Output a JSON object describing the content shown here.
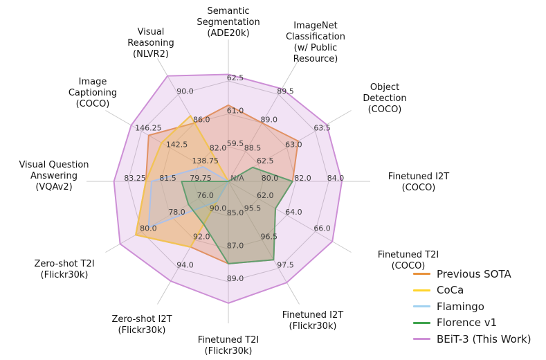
{
  "chart_data": {
    "type": "radar",
    "title": "",
    "center_label": "N/A",
    "grid": true,
    "legend_position": "lower right",
    "background": "#ffffff",
    "grid_color": "#c9c9c9",
    "axes": [
      {
        "label_lines": [
          "Semantic",
          "Segmentation",
          "(ADE20k)"
        ],
        "tick_labels": [
          "59.5",
          "61.0",
          "62.5"
        ]
      },
      {
        "label_lines": [
          "ImageNet",
          "Classification",
          "(w/ Public",
          "Resource)"
        ],
        "tick_labels": [
          "88.5",
          "89.0",
          "89.5"
        ]
      },
      {
        "label_lines": [
          "Object",
          "Detection",
          "(COCO)"
        ],
        "tick_labels": [
          "62.5",
          "63.0",
          "63.5"
        ]
      },
      {
        "label_lines": [
          "Finetuned I2T",
          "(COCO)"
        ],
        "tick_labels": [
          "80.0",
          "82.0",
          "84.0"
        ]
      },
      {
        "label_lines": [
          "Finetuned T2I",
          "(COCO)"
        ],
        "tick_labels": [
          "62.0",
          "64.0",
          "66.0"
        ]
      },
      {
        "label_lines": [
          "Finetuned I2T",
          "(Flickr30k)"
        ],
        "tick_labels": [
          "95.5",
          "96.5",
          "97.5"
        ]
      },
      {
        "label_lines": [
          "Finetuned T2I",
          "(Flickr30k)"
        ],
        "tick_labels": [
          "85.0",
          "87.0",
          "89.0"
        ]
      },
      {
        "label_lines": [
          "Zero-shot I2T",
          "(Flickr30k)"
        ],
        "tick_labels": [
          "90.0",
          "92.0",
          "94.0"
        ]
      },
      {
        "label_lines": [
          "Zero-shot T2I",
          "(Flickr30k)"
        ],
        "tick_labels": [
          "76.0",
          "78.0",
          "80.0"
        ]
      },
      {
        "label_lines": [
          "Visual Question",
          "Answering",
          "(VQAv2)"
        ],
        "tick_labels": [
          "79.75",
          "81.5",
          "83.25"
        ]
      },
      {
        "label_lines": [
          "Image",
          "Captioning",
          "(COCO)"
        ],
        "tick_labels": [
          "138.75",
          "142.5",
          "146.25"
        ]
      },
      {
        "label_lines": [
          "Visual",
          "Reasoning",
          "(NLVR2)"
        ],
        "tick_labels": [
          "82.0",
          "86.0",
          "90.0"
        ]
      }
    ],
    "series": [
      {
        "name": "Previous SOTA",
        "color": "#e8923c",
        "values": [
          61.4,
          89.0,
          63.2,
          81.8,
          63.2,
          97.2,
          87.9,
          92.5,
          80.4,
          82.3,
          145.3,
          86.0
        ]
      },
      {
        "name": "CoCa",
        "color": "#ffd42a",
        "values": [
          null,
          null,
          null,
          null,
          null,
          null,
          null,
          92.5,
          80.4,
          82.3,
          143.6,
          87.0
        ]
      },
      {
        "name": "Flamingo",
        "color": "#a2d2f0",
        "values": [
          null,
          null,
          null,
          null,
          null,
          null,
          null,
          89.3,
          79.5,
          82.0,
          138.1,
          null
        ]
      },
      {
        "name": "Florence v1",
        "color": "#3fa34d",
        "values": [
          null,
          null,
          62.4,
          81.8,
          63.2,
          97.2,
          87.9,
          90.9,
          76.7,
          80.4,
          null,
          null
        ]
      },
      {
        "name": "BEiT-3 (This Work)",
        "color": "#cd8fd6",
        "values": [
          62.8,
          89.6,
          63.7,
          84.8,
          67.2,
          98.0,
          90.3,
          94.9,
          81.5,
          84.0,
          147.6,
          92.6
        ]
      }
    ]
  }
}
